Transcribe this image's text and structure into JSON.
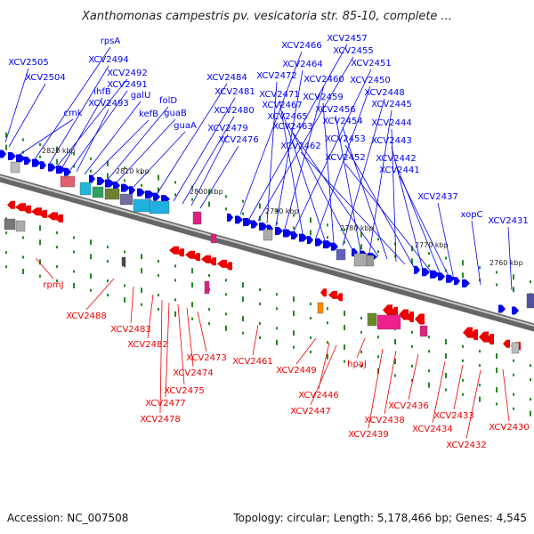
{
  "title": "Xanthomonas campestris pv. vesicatoria str. 85-10, complete ...",
  "footer": {
    "accession": "Accession: NC_007508",
    "summary": "Topology: circular; Length: 5,178,466 bp; Genes: 4,545"
  },
  "colors": {
    "forward": "#0000ee",
    "reverse": "#ee0000",
    "backbone": "#888888",
    "tick": "#228822"
  },
  "kbp_labels": [
    "2820 kbp",
    "2810 kbp",
    "2800 kbp",
    "2790 kbp",
    "2780 kbp",
    "2770 kbp",
    "2760 kbp"
  ],
  "forward_genes": [
    "XCV2505",
    "XCV2504",
    "cmk",
    "rpsA",
    "XCV2494",
    "XCV2492",
    "ihfB",
    "XCV2491",
    "XCV2493",
    "galU",
    "kefB",
    "folD",
    "guaB",
    "guaA",
    "XCV2484",
    "XCV2481",
    "XCV2480",
    "XCV2479",
    "XCV2476",
    "XCV2466",
    "XCV2457",
    "XCV2455",
    "XCV2472",
    "XCV2464",
    "XCV2460",
    "XCV2451",
    "XCV2471",
    "XCV2450",
    "XCV2467",
    "XCV2459",
    "XCV2448",
    "XCV2465",
    "XCV2456",
    "XCV2445",
    "XCV2463",
    "XCV2454",
    "XCV2444",
    "XCV2462",
    "XCV2453",
    "XCV2443",
    "XCV2452",
    "XCV2442",
    "XCV2441",
    "XCV2437",
    "xopC",
    "XCV2431"
  ],
  "reverse_genes": [
    "rpmJ",
    "XCV2488",
    "XCV2483",
    "XCV2482",
    "XCV2473",
    "XCV2474",
    "XCV2475",
    "XCV2477",
    "XCV2478",
    "XCV2461",
    "XCV2449",
    "XCV2446",
    "XCV2447",
    "hpaJ",
    "XCV2436",
    "XCV2438",
    "XCV2439",
    "XCV2434",
    "XCV2433",
    "XCV2432",
    "XCV2430"
  ]
}
